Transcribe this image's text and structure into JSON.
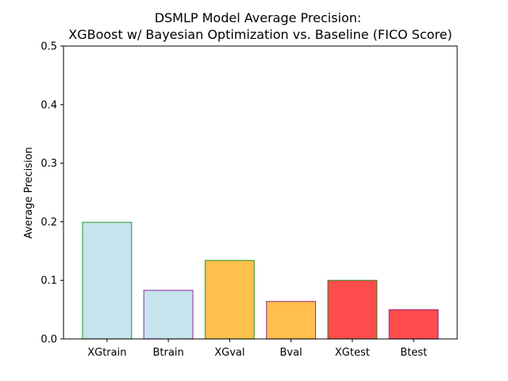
{
  "chart_data": {
    "type": "bar",
    "title_lines": [
      "DSMLP Model Average Precision:",
      "XGBoost w/ Bayesian Optimization vs. Baseline (FICO Score)"
    ],
    "xlabel": "",
    "ylabel": "Average Precision",
    "ylim": [
      0,
      0.5
    ],
    "yticks": [
      "0.0",
      "0.1",
      "0.2",
      "0.3",
      "0.4",
      "0.5"
    ],
    "categories": [
      "XGtrain",
      "Btrain",
      "XGval",
      "Bval",
      "XGtest",
      "Btest"
    ],
    "values": [
      0.199,
      0.083,
      0.134,
      0.064,
      0.1,
      0.05
    ],
    "bar_colors": [
      "#add8e6",
      "#add8e6",
      "#ffa500",
      "#ffa500",
      "#ff0000",
      "#ff0000"
    ],
    "edge_colors": [
      "#008000",
      "#800080",
      "#008000",
      "#800080",
      "#008000",
      "#800080"
    ],
    "bar_alpha": 0.7,
    "grid": false,
    "legend": "none"
  }
}
